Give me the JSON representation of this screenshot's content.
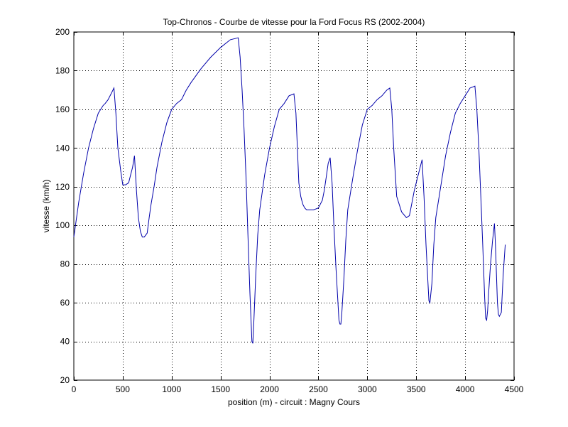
{
  "chart_data": {
    "type": "line",
    "title": "Top-Chronos - Courbe de vitesse pour la Ford Focus RS (2002-2004)",
    "xlabel": "position (m) - circuit : Magny Cours",
    "ylabel": "vitesse (km/h)",
    "xlim": [
      0,
      4500
    ],
    "ylim": [
      20,
      200
    ],
    "xticks": [
      0,
      500,
      1000,
      1500,
      2000,
      2500,
      3000,
      3500,
      4000,
      4500
    ],
    "yticks": [
      20,
      40,
      60,
      80,
      100,
      120,
      140,
      160,
      180,
      200
    ],
    "grid": true,
    "line_color": "#0000aa",
    "series": [
      {
        "x": [
          0,
          50,
          100,
          150,
          200,
          250,
          300,
          320,
          350,
          380,
          410,
          430,
          450,
          480,
          500,
          530,
          560,
          580,
          600,
          620,
          640,
          660,
          680,
          700,
          720,
          750,
          770,
          790,
          820,
          850,
          900,
          950,
          1000,
          1050,
          1100,
          1150,
          1200,
          1300,
          1400,
          1500,
          1600,
          1680,
          1700,
          1720,
          1740,
          1760,
          1780,
          1800,
          1820,
          1830,
          1840,
          1860,
          1880,
          1900,
          1920,
          1950,
          2000,
          2050,
          2100,
          2150,
          2200,
          2250,
          2270,
          2300,
          2320,
          2340,
          2360,
          2380,
          2400,
          2450,
          2500,
          2540,
          2560,
          2580,
          2600,
          2620,
          2640,
          2660,
          2680,
          2700,
          2710,
          2720,
          2730,
          2740,
          2760,
          2780,
          2800,
          2850,
          2900,
          2950,
          3000,
          3050,
          3100,
          3150,
          3200,
          3230,
          3250,
          3270,
          3300,
          3350,
          3400,
          3430,
          3450,
          3480,
          3510,
          3540,
          3560,
          3580,
          3600,
          3620,
          3630,
          3640,
          3660,
          3680,
          3700,
          3750,
          3800,
          3850,
          3900,
          3950,
          4000,
          4050,
          4100,
          4120,
          4140,
          4160,
          4180,
          4200,
          4210,
          4220,
          4230,
          4240,
          4260,
          4280,
          4300,
          4310,
          4320,
          4330,
          4340,
          4350,
          4370,
          4390,
          4410
        ],
        "y": [
          94,
          112,
          127,
          140,
          150,
          158,
          162,
          163,
          165,
          168,
          171,
          158,
          140,
          128,
          121,
          121,
          122,
          126,
          130,
          136,
          118,
          104,
          97,
          94,
          94,
          96,
          104,
          111,
          120,
          130,
          143,
          153,
          160,
          163,
          165,
          170,
          174,
          181,
          187,
          192,
          196,
          197,
          187,
          170,
          150,
          125,
          95,
          65,
          40,
          39,
          50,
          75,
          95,
          108,
          115,
          126,
          140,
          151,
          160,
          163,
          167,
          168,
          158,
          122,
          115,
          111,
          109,
          108,
          108,
          108,
          109,
          113,
          118,
          125,
          132,
          135,
          122,
          98,
          78,
          60,
          51,
          49,
          49,
          55,
          72,
          92,
          108,
          124,
          139,
          152,
          160,
          162,
          165,
          167,
          170,
          171,
          160,
          140,
          115,
          107,
          104,
          105,
          110,
          118,
          124,
          130,
          134,
          115,
          90,
          70,
          61,
          60,
          70,
          90,
          104,
          120,
          136,
          148,
          158,
          163,
          167,
          171,
          172,
          160,
          140,
          115,
          90,
          62,
          52,
          51,
          56,
          65,
          80,
          92,
          101,
          90,
          75,
          60,
          54,
          53,
          55,
          75,
          90
        ]
      }
    ]
  }
}
